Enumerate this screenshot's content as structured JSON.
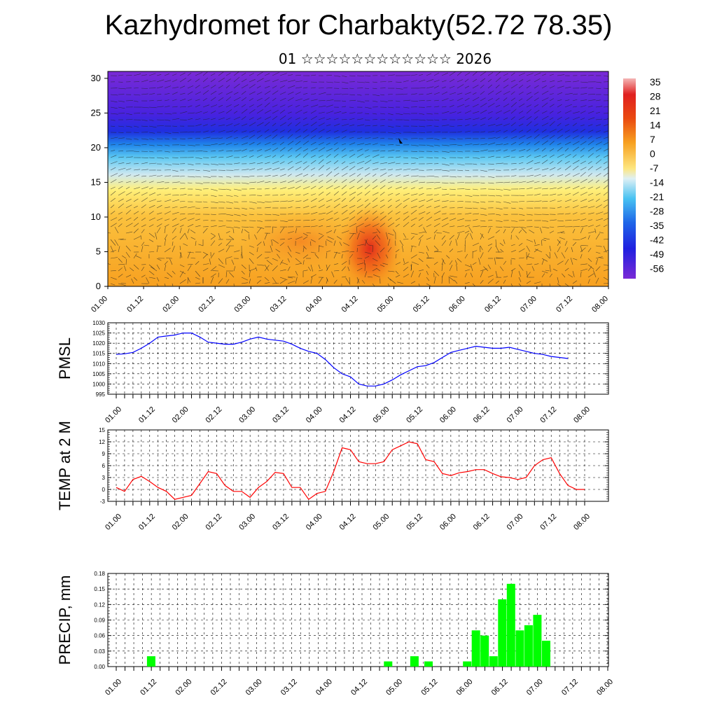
{
  "header": {
    "title": "Kazhydromet for Charbakty(52.72 78.35)",
    "subtitle": "01 ☆☆☆☆☆☆☆☆☆☆☆☆ 2026"
  },
  "time_ticks": [
    "01.00",
    "01.12",
    "02.00",
    "02.12",
    "03.00",
    "03.12",
    "04.00",
    "04.12",
    "05.00",
    "05.12",
    "06.00",
    "06.12",
    "07.00",
    "07.12",
    "08.00"
  ],
  "chart_data": [
    {
      "id": "cross_section",
      "type": "heatmap",
      "title": "Temperature / wind cross-section",
      "x_ticks": [
        "01.00",
        "01.12",
        "02.00",
        "02.12",
        "03.00",
        "03.12",
        "04.00",
        "04.12",
        "05.00",
        "05.12",
        "06.00",
        "06.12",
        "07.00",
        "07.12",
        "08.00"
      ],
      "y_ticks": [
        0,
        5,
        10,
        15,
        20,
        25,
        30
      ],
      "ylim": [
        0,
        31
      ],
      "colorbar_labels": [
        "35",
        "28",
        "21",
        "14",
        "7",
        "0",
        "-7",
        "-14",
        "-21",
        "-28",
        "-35",
        "-42",
        "-49",
        "-56"
      ]
    },
    {
      "id": "pmsl",
      "type": "line",
      "ylabel": "PMSL",
      "ylim": [
        995,
        1030
      ],
      "y_ticks": [
        995,
        1000,
        1005,
        1010,
        1015,
        1020,
        1025,
        1030
      ],
      "x": [
        0,
        0.25,
        0.5,
        0.75,
        1,
        1.25,
        1.5,
        1.75,
        2,
        2.25,
        2.5,
        2.75,
        3,
        3.25,
        3.5,
        3.75,
        4,
        4.25,
        4.5,
        4.75,
        5,
        5.25,
        5.5,
        5.75,
        6,
        6.25,
        6.5,
        6.75,
        7,
        7.25,
        7.5,
        7.75,
        8,
        8.25,
        8.5,
        8.75,
        9,
        9.25,
        9.5,
        9.75,
        10,
        10.25,
        10.5,
        10.75,
        11,
        11.25,
        11.5,
        11.75,
        12,
        12.25,
        12.5,
        12.75,
        13,
        13.25,
        13.5
      ],
      "values": [
        1014.5,
        1014.8,
        1015.5,
        1017.5,
        1020,
        1023,
        1023.5,
        1024,
        1025,
        1025,
        1023,
        1020.5,
        1020,
        1019.5,
        1019.5,
        1020.5,
        1022,
        1023,
        1022,
        1021.5,
        1021,
        1019.5,
        1017.5,
        1016,
        1015,
        1012,
        1008,
        1005,
        1003.5,
        1000,
        999,
        999,
        1000,
        1002,
        1004.5,
        1006.5,
        1008.5,
        1009,
        1010.5,
        1013,
        1015.5,
        1016.5,
        1017.5,
        1018.5,
        1018,
        1017.5,
        1017.5,
        1018,
        1017,
        1016,
        1015,
        1014.5,
        1013.5,
        1013,
        1012.5
      ]
    },
    {
      "id": "temp2m",
      "type": "line",
      "ylabel": "TEMP at 2 M",
      "ylim": [
        -3,
        15
      ],
      "y_ticks": [
        -3,
        0,
        3,
        6,
        9,
        12,
        15
      ],
      "x": [
        0,
        0.25,
        0.5,
        0.75,
        1,
        1.25,
        1.5,
        1.75,
        2,
        2.25,
        2.5,
        2.75,
        3,
        3.25,
        3.5,
        3.75,
        4,
        4.25,
        4.5,
        4.75,
        5,
        5.25,
        5.5,
        5.75,
        6,
        6.25,
        6.5,
        6.75,
        7,
        7.25,
        7.5,
        7.75,
        8,
        8.25,
        8.5,
        8.75,
        9,
        9.25,
        9.5,
        9.75,
        10,
        10.25,
        10.5,
        10.75,
        11,
        11.25,
        11.5,
        11.75,
        12,
        12.25,
        12.5,
        12.75,
        13,
        13.25,
        13.5
      ],
      "values": [
        0.5,
        -0.5,
        2.5,
        3.3,
        2,
        0.5,
        -0.5,
        -2.5,
        -2,
        -1.5,
        1.5,
        4.5,
        4,
        1,
        -0.5,
        -0.5,
        -2,
        0.5,
        2,
        4.3,
        4,
        0.5,
        0.5,
        -2.5,
        -1,
        -0.5,
        4.5,
        10.5,
        10,
        7,
        6.5,
        6.5,
        7,
        10,
        11,
        12,
        11.5,
        7.5,
        7,
        4,
        3.5,
        4.2,
        4.5,
        5,
        5,
        4,
        3.2,
        3,
        2.5,
        3,
        6,
        7.5,
        8,
        4,
        1
      ],
      "extra_tail": [
        0,
        0
      ]
    },
    {
      "id": "precip",
      "type": "bar",
      "ylabel": "PRECIP, mm",
      "ylim": [
        0,
        0.18
      ],
      "y_ticks": [
        "0.00",
        "0.03",
        "0.06",
        "0.09",
        "0.12",
        "0.15",
        "0.18"
      ],
      "bar_x": [
        1.0,
        7.75,
        8.5,
        8.9,
        10.0,
        10.25,
        10.5,
        10.75,
        11.0,
        11.25,
        11.5,
        11.75,
        12.0,
        12.25
      ],
      "values": [
        0.02,
        0.01,
        0.02,
        0.01,
        0.01,
        0.07,
        0.06,
        0.02,
        0.13,
        0.16,
        0.07,
        0.08,
        0.1,
        0.05
      ]
    }
  ],
  "colors": {
    "pmsl_line": "#0000ff",
    "temp_line": "#ff0000",
    "precip_bar": "#00ff00",
    "axis": "#000000",
    "grid": "#000000"
  }
}
